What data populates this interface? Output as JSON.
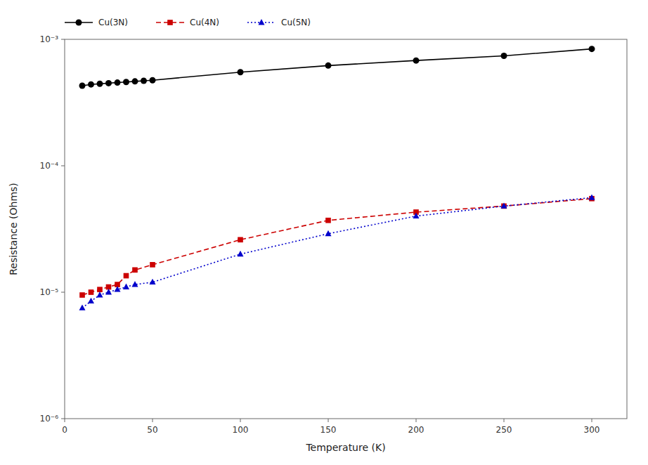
{
  "chart_data": {
    "type": "line",
    "xlabel": "Temperature (K)",
    "ylabel": "Resistance (Ohms)",
    "xlim": [
      0,
      320
    ],
    "xticks": [
      0,
      50,
      100,
      150,
      200,
      250,
      300
    ],
    "ylim": [
      1e-06,
      0.001
    ],
    "yticks": [
      {
        "value": 1e-06,
        "label": "10⁻⁶"
      },
      {
        "value": 1e-05,
        "label": "10⁻⁵"
      },
      {
        "value": 0.0001,
        "label": "10⁻⁴"
      },
      {
        "value": 0.001,
        "label": "10⁻³"
      }
    ],
    "log": "y",
    "grid": false,
    "legend": "upper left",
    "series": [
      {
        "name": "Cu(3N)",
        "color": "#000000",
        "marker": "circle",
        "line_style": "solid",
        "x": [
          10,
          15,
          20,
          25,
          30,
          35,
          40,
          45,
          50,
          100,
          150,
          200,
          250,
          300
        ],
        "values": [
          0.00043,
          0.00044,
          0.000445,
          0.00045,
          0.000455,
          0.00046,
          0.000465,
          0.00047,
          0.000475,
          0.00055,
          0.00062,
          0.00068,
          0.00074,
          0.00084
        ]
      },
      {
        "name": "Cu(4N)",
        "color": "#cc0000",
        "marker": "square",
        "line_style": "dashed",
        "x": [
          10,
          15,
          20,
          25,
          30,
          35,
          40,
          50,
          100,
          150,
          200,
          250,
          300
        ],
        "values": [
          9.5e-06,
          1e-05,
          1.05e-05,
          1.1e-05,
          1.15e-05,
          1.35e-05,
          1.5e-05,
          1.65e-05,
          2.6e-05,
          3.7e-05,
          4.3e-05,
          4.8e-05,
          5.5e-05
        ]
      },
      {
        "name": "Cu(5N)",
        "color": "#0000cc",
        "marker": "triangle",
        "line_style": "dotted",
        "x": [
          10,
          15,
          20,
          25,
          30,
          35,
          40,
          50,
          100,
          150,
          200,
          250,
          300
        ],
        "values": [
          7.5e-06,
          8.5e-06,
          9.5e-06,
          1e-05,
          1.05e-05,
          1.1e-05,
          1.15e-05,
          1.2e-05,
          2e-05,
          2.9e-05,
          4e-05,
          4.8e-05,
          5.6e-05
        ]
      }
    ]
  }
}
